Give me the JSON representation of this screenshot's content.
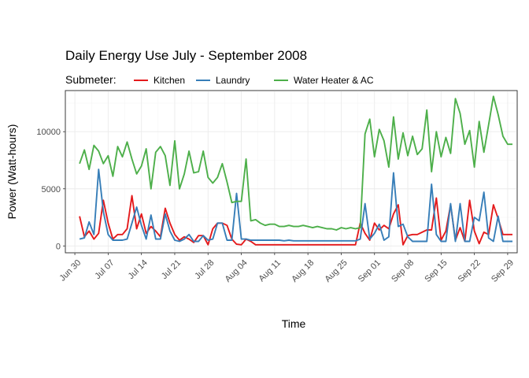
{
  "chart_data": {
    "type": "line",
    "title": "Daily Energy Use July - September 2008",
    "xlabel": "Time",
    "ylabel": "Power (Watt-hours)",
    "legend_title": "Submeter:",
    "legend_position": "top-left",
    "grid": true,
    "x_ticks": [
      "Jun 30",
      "Jul 07",
      "Jul 14",
      "Jul 21",
      "Jul 28",
      "Aug 04",
      "Aug 11",
      "Aug 18",
      "Aug 25",
      "Sep 01",
      "Sep 08",
      "Sep 15",
      "Sep 22",
      "Sep 29"
    ],
    "y_ticks": [
      0,
      5000,
      10000
    ],
    "xlim": [
      "2008-06-28",
      "2008-10-01"
    ],
    "ylim": [
      -600,
      13600
    ],
    "series": [
      {
        "name": "Kitchen",
        "color": "#E41A1C",
        "x": [
          "2008-07-01",
          "2008-07-02",
          "2008-07-03",
          "2008-07-04",
          "2008-07-05",
          "2008-07-06",
          "2008-07-07",
          "2008-07-08",
          "2008-07-09",
          "2008-07-10",
          "2008-07-11",
          "2008-07-12",
          "2008-07-13",
          "2008-07-14",
          "2008-07-15",
          "2008-07-16",
          "2008-07-17",
          "2008-07-18",
          "2008-07-19",
          "2008-07-20",
          "2008-07-21",
          "2008-07-22",
          "2008-07-23",
          "2008-07-24",
          "2008-07-25",
          "2008-07-26",
          "2008-07-27",
          "2008-07-28",
          "2008-07-29",
          "2008-07-30",
          "2008-07-31",
          "2008-08-01",
          "2008-08-02",
          "2008-08-03",
          "2008-08-04",
          "2008-08-05",
          "2008-08-06",
          "2008-08-07",
          "2008-08-08",
          "2008-08-28",
          "2008-08-29",
          "2008-08-30",
          "2008-08-31",
          "2008-09-01",
          "2008-09-02",
          "2008-09-03",
          "2008-09-04",
          "2008-09-05",
          "2008-09-06",
          "2008-09-07",
          "2008-09-08",
          "2008-09-09",
          "2008-09-10",
          "2008-09-11",
          "2008-09-12",
          "2008-09-13",
          "2008-09-14",
          "2008-09-15",
          "2008-09-16",
          "2008-09-17",
          "2008-09-18",
          "2008-09-19",
          "2008-09-20",
          "2008-09-21",
          "2008-09-22",
          "2008-09-23",
          "2008-09-24",
          "2008-09-25",
          "2008-09-26",
          "2008-09-27",
          "2008-09-28",
          "2008-09-29",
          "2008-09-30"
        ],
        "values": [
          2600,
          800,
          1300,
          600,
          1100,
          4000,
          2000,
          600,
          1000,
          1000,
          1500,
          4400,
          1500,
          2800,
          1100,
          1700,
          1300,
          800,
          3300,
          2000,
          1000,
          500,
          800,
          600,
          300,
          900,
          900,
          100,
          1500,
          2000,
          2000,
          1800,
          600,
          150,
          100,
          600,
          400,
          100,
          100,
          100,
          2000,
          1100,
          500,
          2000,
          1400,
          1800,
          1500,
          2800,
          3600,
          100,
          900,
          1000,
          1000,
          1200,
          1400,
          1400,
          4200,
          500,
          1300,
          3600,
          500,
          1600,
          400,
          4000,
          1300,
          200,
          1200,
          1000,
          3600,
          2400,
          1000,
          1000,
          1000
        ]
      },
      {
        "name": "Laundry",
        "color": "#377EB8",
        "x": [
          "2008-07-01",
          "2008-07-02",
          "2008-07-03",
          "2008-07-04",
          "2008-07-05",
          "2008-07-06",
          "2008-07-07",
          "2008-07-08",
          "2008-07-09",
          "2008-07-10",
          "2008-07-11",
          "2008-07-12",
          "2008-07-13",
          "2008-07-14",
          "2008-07-15",
          "2008-07-16",
          "2008-07-17",
          "2008-07-18",
          "2008-07-19",
          "2008-07-20",
          "2008-07-21",
          "2008-07-22",
          "2008-07-23",
          "2008-07-24",
          "2008-07-25",
          "2008-07-26",
          "2008-07-27",
          "2008-07-28",
          "2008-07-29",
          "2008-07-30",
          "2008-07-31",
          "2008-08-01",
          "2008-08-02",
          "2008-08-03",
          "2008-08-04",
          "2008-08-05",
          "2008-08-06",
          "2008-08-07",
          "2008-08-08",
          "2008-08-09",
          "2008-08-10",
          "2008-08-11",
          "2008-08-12",
          "2008-08-13",
          "2008-08-14",
          "2008-08-15",
          "2008-08-16",
          "2008-08-17",
          "2008-08-18",
          "2008-08-19",
          "2008-08-20",
          "2008-08-21",
          "2008-08-22",
          "2008-08-23",
          "2008-08-24",
          "2008-08-25",
          "2008-08-26",
          "2008-08-27",
          "2008-08-28",
          "2008-08-29",
          "2008-08-30",
          "2008-08-31",
          "2008-09-01",
          "2008-09-02",
          "2008-09-03",
          "2008-09-04",
          "2008-09-05",
          "2008-09-06",
          "2008-09-07",
          "2008-09-08",
          "2008-09-09",
          "2008-09-10",
          "2008-09-11",
          "2008-09-12",
          "2008-09-13",
          "2008-09-14",
          "2008-09-15",
          "2008-09-16",
          "2008-09-17",
          "2008-09-18",
          "2008-09-19",
          "2008-09-20",
          "2008-09-21",
          "2008-09-22",
          "2008-09-23",
          "2008-09-24",
          "2008-09-25",
          "2008-09-26",
          "2008-09-27",
          "2008-09-28",
          "2008-09-29",
          "2008-09-30"
        ],
        "values": [
          600,
          700,
          2100,
          1000,
          6700,
          3000,
          1000,
          500,
          500,
          500,
          600,
          2000,
          3400,
          1800,
          600,
          2700,
          600,
          600,
          2800,
          1300,
          500,
          400,
          600,
          1000,
          400,
          400,
          900,
          500,
          600,
          2000,
          2000,
          500,
          500,
          4600,
          600,
          600,
          500,
          500,
          500,
          500,
          500,
          500,
          500,
          450,
          500,
          450,
          450,
          450,
          450,
          450,
          450,
          450,
          450,
          450,
          450,
          450,
          450,
          450,
          450,
          600,
          3700,
          600,
          1100,
          1900,
          500,
          800,
          6400,
          1700,
          1900,
          800,
          400,
          400,
          400,
          400,
          5400,
          1000,
          400,
          400,
          3700,
          400,
          3700,
          400,
          400,
          2500,
          2200,
          4700,
          700,
          400,
          2600,
          400,
          400,
          400
        ]
      },
      {
        "name": "Water Heater & AC",
        "color": "#4DAF4A",
        "x": [
          "2008-07-01",
          "2008-07-02",
          "2008-07-03",
          "2008-07-04",
          "2008-07-05",
          "2008-07-06",
          "2008-07-07",
          "2008-07-08",
          "2008-07-09",
          "2008-07-10",
          "2008-07-11",
          "2008-07-12",
          "2008-07-13",
          "2008-07-14",
          "2008-07-15",
          "2008-07-16",
          "2008-07-17",
          "2008-07-18",
          "2008-07-19",
          "2008-07-20",
          "2008-07-21",
          "2008-07-22",
          "2008-07-23",
          "2008-07-24",
          "2008-07-25",
          "2008-07-26",
          "2008-07-27",
          "2008-07-28",
          "2008-07-29",
          "2008-07-30",
          "2008-07-31",
          "2008-08-01",
          "2008-08-02",
          "2008-08-03",
          "2008-08-04",
          "2008-08-05",
          "2008-08-06",
          "2008-08-07",
          "2008-08-08",
          "2008-08-09",
          "2008-08-10",
          "2008-08-11",
          "2008-08-12",
          "2008-08-13",
          "2008-08-14",
          "2008-08-15",
          "2008-08-16",
          "2008-08-17",
          "2008-08-18",
          "2008-08-19",
          "2008-08-20",
          "2008-08-21",
          "2008-08-22",
          "2008-08-23",
          "2008-08-24",
          "2008-08-25",
          "2008-08-26",
          "2008-08-27",
          "2008-08-28",
          "2008-08-29",
          "2008-08-30",
          "2008-08-31",
          "2008-09-01",
          "2008-09-02",
          "2008-09-03",
          "2008-09-04",
          "2008-09-05",
          "2008-09-06",
          "2008-09-07",
          "2008-09-08",
          "2008-09-09",
          "2008-09-10",
          "2008-09-11",
          "2008-09-12",
          "2008-09-13",
          "2008-09-14",
          "2008-09-15",
          "2008-09-16",
          "2008-09-17",
          "2008-09-18",
          "2008-09-19",
          "2008-09-20",
          "2008-09-21",
          "2008-09-22",
          "2008-09-23",
          "2008-09-24",
          "2008-09-25",
          "2008-09-26",
          "2008-09-27",
          "2008-09-28",
          "2008-09-29",
          "2008-09-30"
        ],
        "values": [
          7200,
          8400,
          6700,
          8800,
          8300,
          7200,
          7900,
          6100,
          8700,
          7800,
          9100,
          7600,
          6300,
          7000,
          8500,
          5000,
          8200,
          8700,
          7900,
          5300,
          9200,
          5000,
          6300,
          8300,
          6400,
          6500,
          8300,
          6000,
          5500,
          6000,
          7200,
          5600,
          3800,
          3900,
          3900,
          7600,
          2200,
          2300,
          2000,
          1800,
          1900,
          1900,
          1700,
          1700,
          1800,
          1700,
          1700,
          1800,
          1700,
          1600,
          1700,
          1600,
          1500,
          1500,
          1400,
          1600,
          1500,
          1600,
          1500,
          1600,
          9800,
          11100,
          7800,
          10200,
          9200,
          6900,
          11300,
          7600,
          9900,
          7900,
          9600,
          8000,
          8500,
          11900,
          6500,
          10000,
          7800,
          9500,
          8100,
          12900,
          11600,
          8900,
          10100,
          6900,
          10900,
          8200,
          10600,
          13100,
          11500,
          9600,
          8900,
          8900
        ]
      }
    ]
  }
}
